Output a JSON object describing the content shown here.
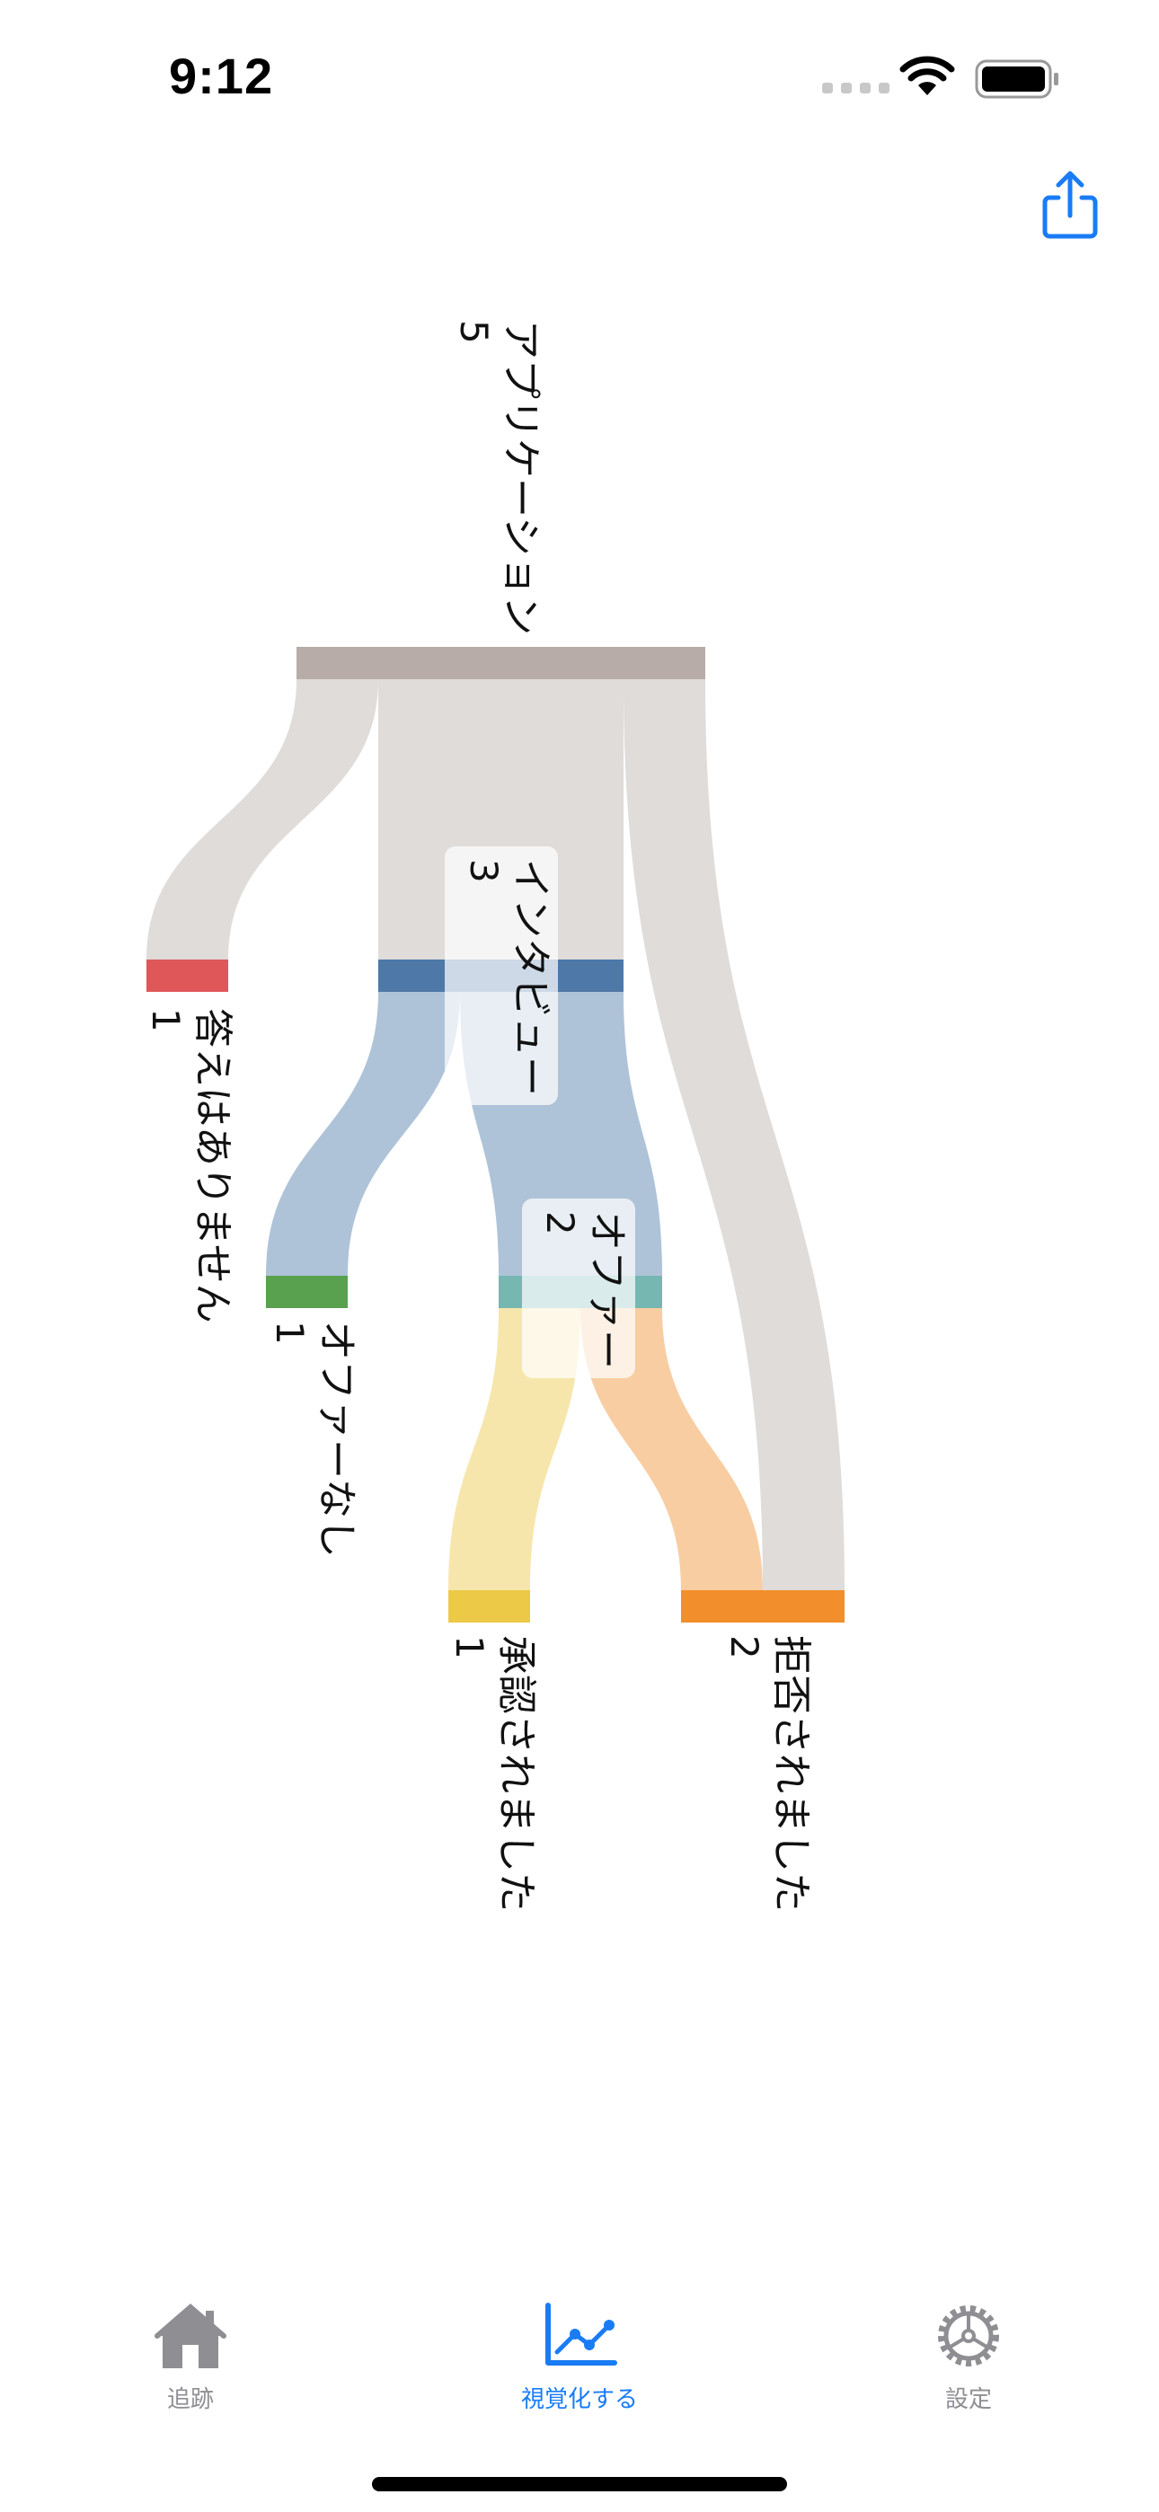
{
  "status_bar": {
    "time": "9:12"
  },
  "toolbar": {
    "share_icon": "square-and-arrow-up-icon"
  },
  "colors": {
    "accent": "#1a7cf5",
    "inactive_tab": "#8e8e93",
    "applications": "#b7aca7",
    "no_answer": "#e05759",
    "interview": "#4e78a8",
    "no_offer": "#59a14f",
    "offer": "#76b7b2",
    "accepted": "#edc948",
    "rejected": "#f28e2b",
    "link_gray": "#dfdcda",
    "link_blue": "#aec3d8",
    "link_yellow": "#f7e6ac",
    "link_orange": "#f8cda2"
  },
  "chart_data": {
    "type": "sankey",
    "orientation": "top-to-bottom",
    "nodes": [
      {
        "id": "applications",
        "name": "アプリケーション",
        "value": "5"
      },
      {
        "id": "no_answer",
        "name": "答えはありません",
        "value": "1"
      },
      {
        "id": "interview",
        "name": "インタビュー",
        "value": "3"
      },
      {
        "id": "no_offer",
        "name": "オファーなし",
        "value": "1"
      },
      {
        "id": "offer",
        "name": "オファー",
        "value": "2"
      },
      {
        "id": "accepted",
        "name": "承認されました",
        "value": "1"
      },
      {
        "id": "rejected",
        "name": "拒否されました",
        "value": "2"
      }
    ],
    "links": [
      {
        "source": "applications",
        "target": "no_answer",
        "value": 1
      },
      {
        "source": "applications",
        "target": "interview",
        "value": 3
      },
      {
        "source": "applications",
        "target": "rejected",
        "value": 1
      },
      {
        "source": "interview",
        "target": "no_offer",
        "value": 1
      },
      {
        "source": "interview",
        "target": "offer",
        "value": 2
      },
      {
        "source": "offer",
        "target": "accepted",
        "value": 1
      },
      {
        "source": "offer",
        "target": "rejected",
        "value": 1
      }
    ]
  },
  "tabs": [
    {
      "label": "追跡",
      "icon": "house-icon",
      "active": false
    },
    {
      "label": "視覚化する",
      "icon": "chart-line-icon",
      "active": true
    },
    {
      "label": "設定",
      "icon": "gear-icon",
      "active": false
    }
  ]
}
